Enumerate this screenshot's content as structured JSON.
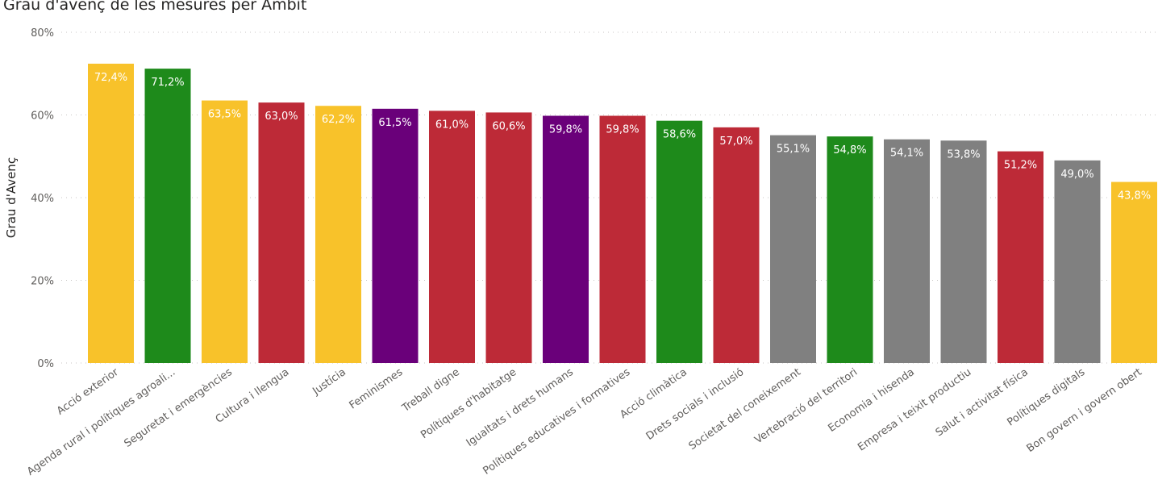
{
  "chart_data": {
    "type": "bar",
    "title": "Grau d'avenç de les mesures per Àmbit",
    "xlabel": "",
    "ylabel": "Grau d'Avenç",
    "ylim": [
      0,
      80
    ],
    "yticks": [
      0,
      20,
      40,
      60,
      80
    ],
    "ytick_labels": [
      "0%",
      "20%",
      "40%",
      "60%",
      "80%"
    ],
    "grid": true,
    "categories": [
      "Acció exterior",
      "Agenda rural i polítiques agroali...",
      "Seguretat i emergències",
      "Cultura i llengua",
      "Justícia",
      "Feminismes",
      "Treball digne",
      "Polítiques d'habitatge",
      "Igualtats i drets humans",
      "Polítiques educatives i formatives",
      "Acció climàtica",
      "Drets socials i inclusió",
      "Societat del coneixement",
      "Vertebració del territori",
      "Economia i hisenda",
      "Empresa i teixit productiu",
      "Salut i activitat física",
      "Polítiques digitals",
      "Bon govern i govern obert"
    ],
    "values": [
      72.4,
      71.2,
      63.5,
      63.0,
      62.2,
      61.5,
      61.0,
      60.6,
      59.8,
      59.8,
      58.6,
      57.0,
      55.1,
      54.8,
      54.1,
      53.8,
      51.2,
      49.0,
      43.8
    ],
    "data_labels": [
      "72,4%",
      "71,2%",
      "63,5%",
      "63,0%",
      "62,2%",
      "61,5%",
      "61,0%",
      "60,6%",
      "59,8%",
      "59,8%",
      "58,6%",
      "57,0%",
      "55,1%",
      "54,8%",
      "54,1%",
      "53,8%",
      "51,2%",
      "49,0%",
      "43,8%"
    ],
    "colors": [
      "#F8C22A",
      "#1E8A1B",
      "#F8C22A",
      "#BD2A37",
      "#F8C22A",
      "#6A007A",
      "#BD2A37",
      "#BD2A37",
      "#6A007A",
      "#BD2A37",
      "#1E8A1B",
      "#BD2A37",
      "#808080",
      "#1E8A1B",
      "#808080",
      "#808080",
      "#BD2A37",
      "#808080",
      "#F8C22A"
    ],
    "palette": {
      "yellow": "#F8C22A",
      "green": "#1E8A1B",
      "red": "#BD2A37",
      "purple": "#6A007A",
      "gray": "#808080",
      "label_text": "#FFFFFF",
      "grid": "#C8C6C4",
      "axis_text": "#605E5C"
    }
  }
}
